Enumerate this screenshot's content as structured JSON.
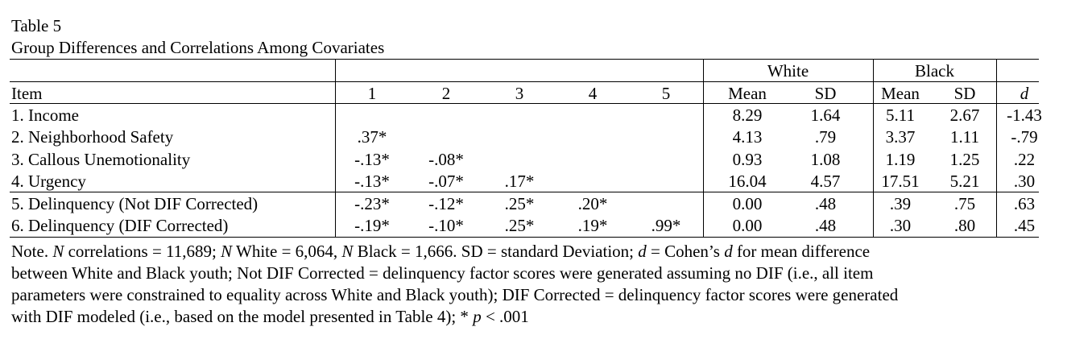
{
  "table_label": "Table 5",
  "table_title": "Group Differences and Correlations Among Covariates",
  "group_headers": {
    "white": "White",
    "black": "Black"
  },
  "column_headers": {
    "item": "Item",
    "c1": "1",
    "c2": "2",
    "c3": "3",
    "c4": "4",
    "c5": "5",
    "white_mean": "Mean",
    "white_sd": "SD",
    "black_mean": "Mean",
    "black_sd": "SD",
    "d": "d"
  },
  "rows": [
    {
      "item": "1.  Income",
      "c1": "",
      "c2": "",
      "c3": "",
      "c4": "",
      "c5": "",
      "wm": "8.29",
      "wsd": "1.64",
      "bm": "5.11",
      "bsd": "2.67",
      "d": "-1.43"
    },
    {
      "item": "2.  Neighborhood Safety",
      "c1": ".37*",
      "c2": "",
      "c3": "",
      "c4": "",
      "c5": "",
      "wm": "4.13",
      "wsd": ".79",
      "bm": "3.37",
      "bsd": "1.11",
      "d": "-.79"
    },
    {
      "item": "3. Callous Unemotionality",
      "c1": "-.13*",
      "c2": "-.08*",
      "c3": "",
      "c4": "",
      "c5": "",
      "wm": "0.93",
      "wsd": "1.08",
      "bm": "1.19",
      "bsd": "1.25",
      "d": ".22"
    },
    {
      "item": "4. Urgency",
      "c1": "-.13*",
      "c2": "-.07*",
      "c3": ".17*",
      "c4": "",
      "c5": "",
      "wm": "16.04",
      "wsd": "4.57",
      "bm": "17.51",
      "bsd": "5.21",
      "d": ".30"
    },
    {
      "item": "5. Delinquency (Not DIF Corrected)",
      "c1": "-.23*",
      "c2": "-.12*",
      "c3": ".25*",
      "c4": ".20*",
      "c5": "",
      "wm": "0.00",
      "wsd": ".48",
      "bm": ".39",
      "bsd": ".75",
      "d": ".63"
    },
    {
      "item": "6. Delinquency (DIF Corrected)",
      "c1": "-.19*",
      "c2": "-.10*",
      "c3": ".25*",
      "c4": ".19*",
      "c5": ".99*",
      "wm": "0.00",
      "wsd": ".48",
      "bm": ".30",
      "bsd": ".80",
      "d": ".45"
    }
  ],
  "note": {
    "p1": "Note. ",
    "n1": "N",
    "p2": " correlations = 11,689; ",
    "n2": "N",
    "p3": " White = 6,064, ",
    "n3": "N",
    "p4": " Black = 1,666. SD = standard Deviation; ",
    "d1": "d",
    "p5": " = Cohen’s ",
    "d2": "d",
    "p6": " for mean difference",
    "line2": "between White and Black youth; Not DIF Corrected = delinquency factor scores were generated assuming no DIF (i.e., all item",
    "line3": "parameters were constrained to equality across White and Black youth); DIF Corrected = delinquency factor scores were generated",
    "line4a": "with DIF modeled (i.e., based on the model presented in Table 4); * ",
    "p_sym": "p",
    "line4b": " < .001"
  }
}
